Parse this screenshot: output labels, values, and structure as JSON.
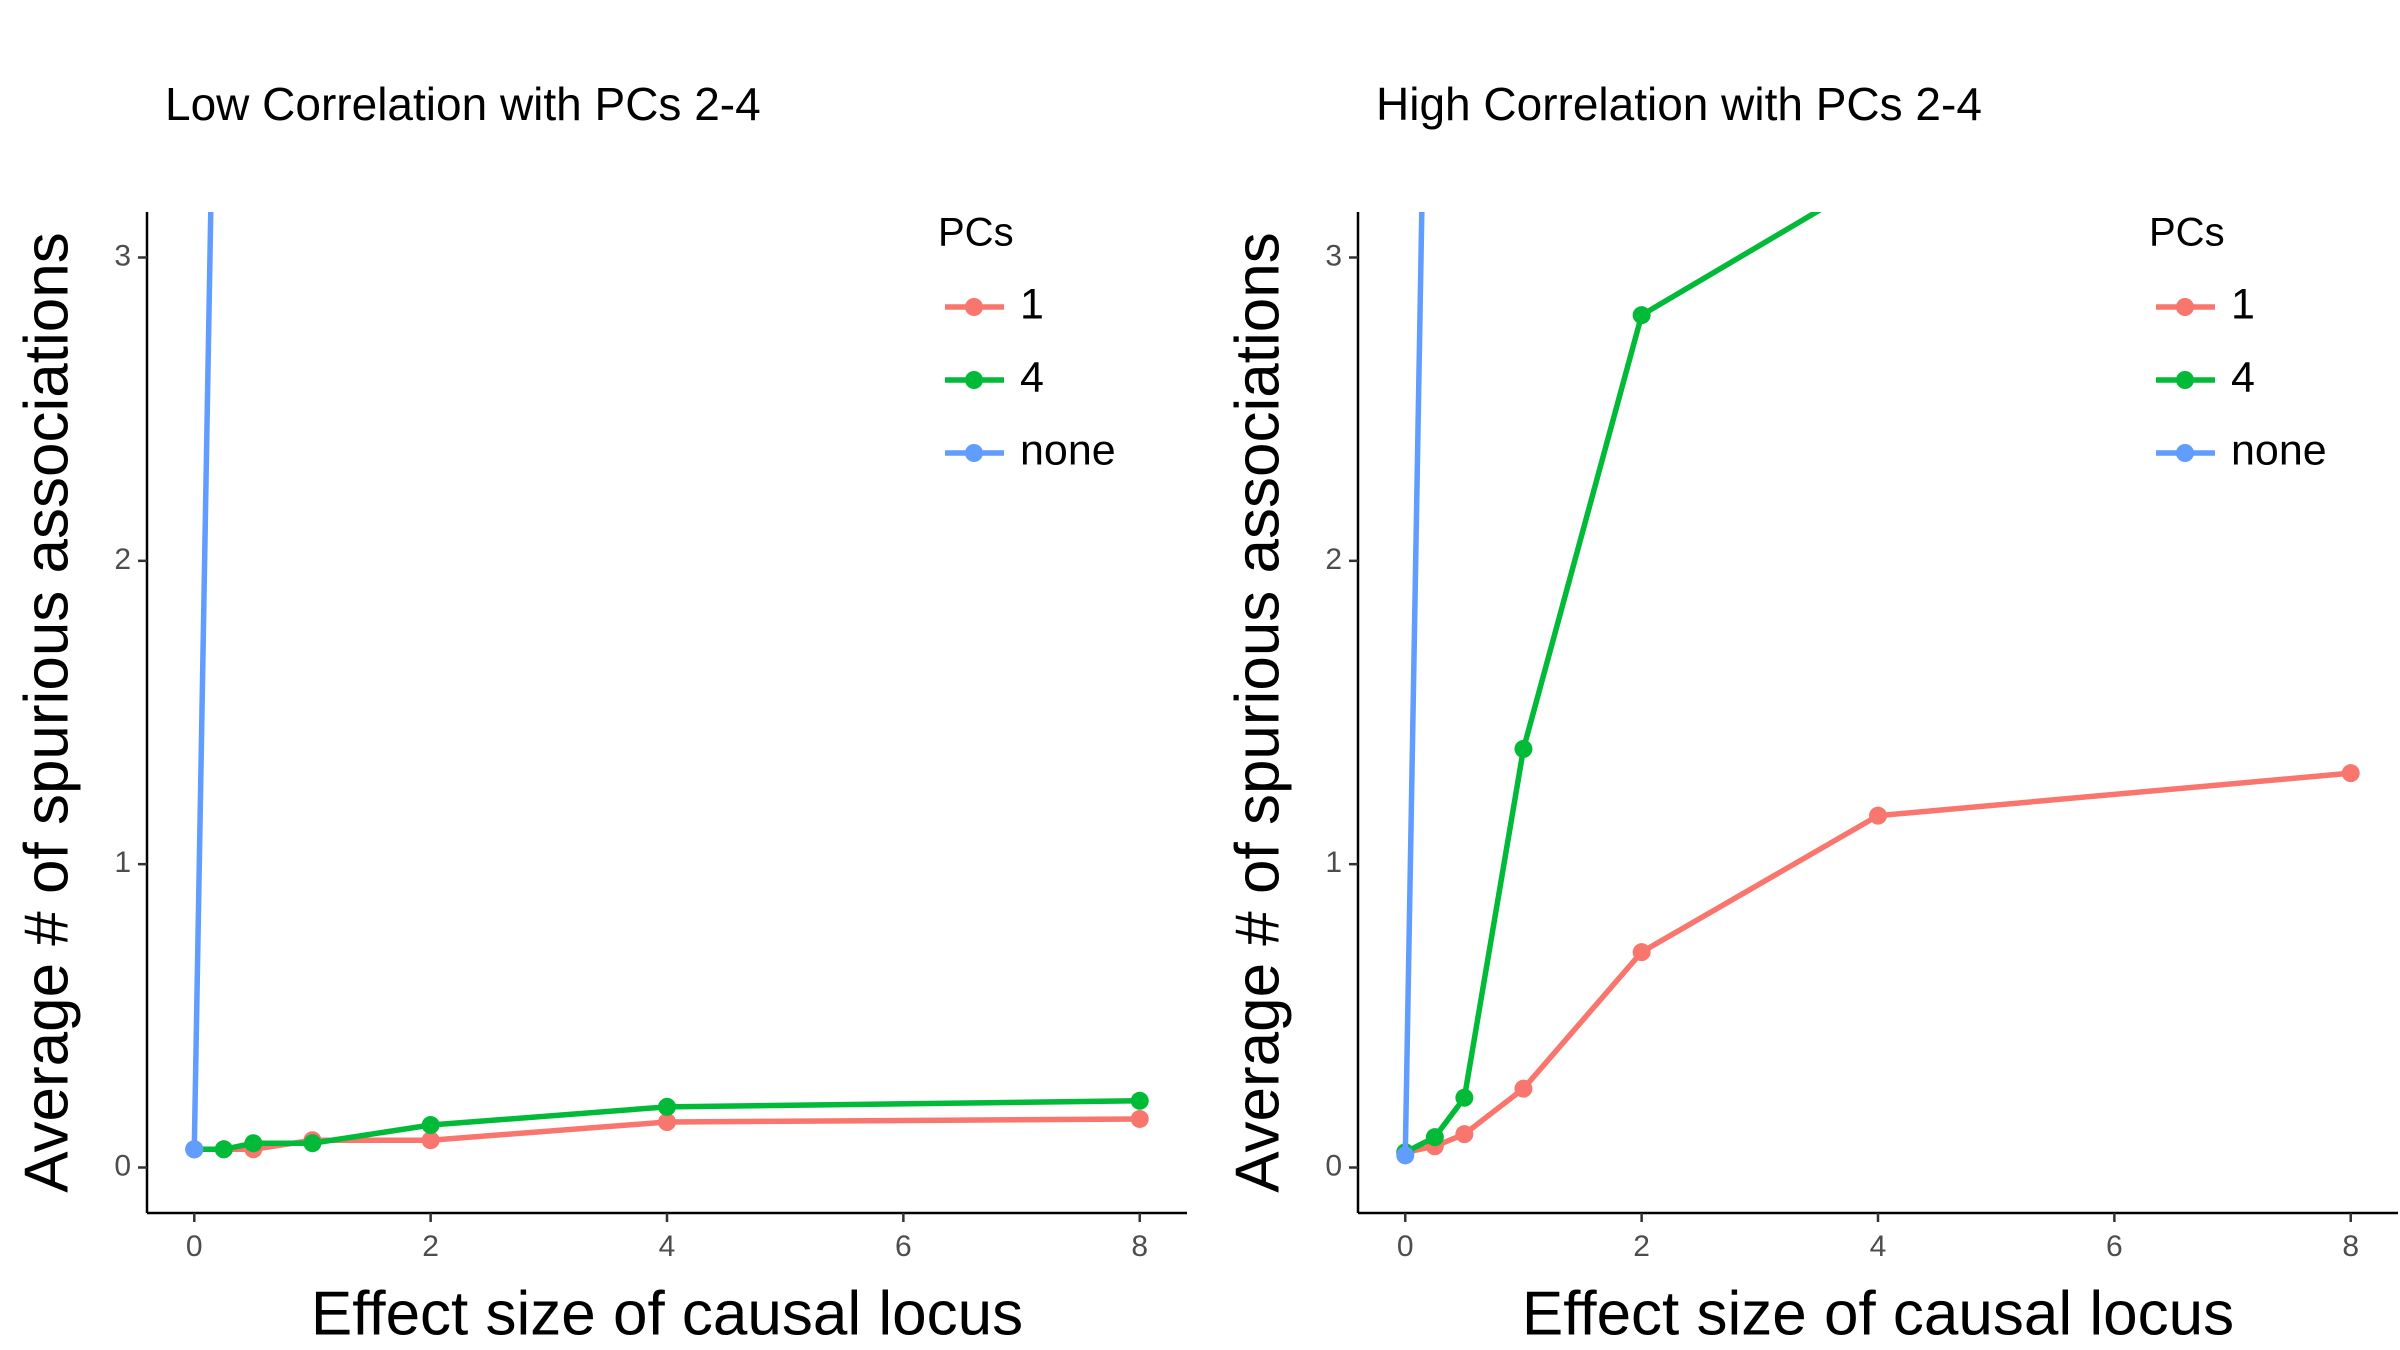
{
  "chart_data": [
    {
      "type": "line",
      "title": "Low Correlation with PCs 2-4",
      "x_label": "Effect size of causal locus",
      "y_label": "Average # of spurious associations",
      "x": [
        0,
        0.25,
        0.5,
        1,
        2,
        4,
        8
      ],
      "series": [
        {
          "name": "1",
          "color": "#f8766d",
          "values": [
            0.06,
            0.06,
            0.06,
            0.09,
            0.09,
            0.15,
            0.16
          ]
        },
        {
          "name": "4",
          "color": "#00ba38",
          "values": [
            0.06,
            0.06,
            0.08,
            0.08,
            0.14,
            0.2,
            0.22
          ]
        },
        {
          "name": "none",
          "color": "#619cff",
          "values": [
            0.06,
            5.6,
            null,
            null,
            null,
            null,
            null
          ]
        }
      ],
      "xlim": [
        -0.4,
        8.4
      ],
      "ylim": [
        -0.15,
        3.15
      ],
      "xticks": [
        0,
        2,
        4,
        6,
        8
      ],
      "yticks": [
        0,
        1,
        2,
        3
      ],
      "legend_title": "PCs",
      "legend": "top-right"
    },
    {
      "type": "line",
      "title": "High Correlation with PCs 2-4",
      "x_label": "Effect size of causal locus",
      "y_label": "Average # of spurious associations",
      "x": [
        0,
        0.25,
        0.5,
        1,
        2,
        4,
        8
      ],
      "series": [
        {
          "name": "1",
          "color": "#f8766d",
          "values": [
            0.05,
            0.07,
            0.11,
            0.26,
            0.71,
            1.16,
            1.3
          ]
        },
        {
          "name": "4",
          "color": "#00ba38",
          "values": [
            0.05,
            0.1,
            0.23,
            1.38,
            2.81,
            3.27,
            null
          ]
        },
        {
          "name": "none",
          "color": "#619cff",
          "values": [
            0.04,
            5.6,
            null,
            null,
            null,
            null,
            null
          ]
        }
      ],
      "xlim": [
        -0.4,
        8.4
      ],
      "ylim": [
        -0.15,
        3.15
      ],
      "xticks": [
        0,
        2,
        4,
        6,
        8
      ],
      "yticks": [
        0,
        1,
        2,
        3
      ],
      "legend_title": "PCs",
      "legend": "top-right"
    }
  ]
}
